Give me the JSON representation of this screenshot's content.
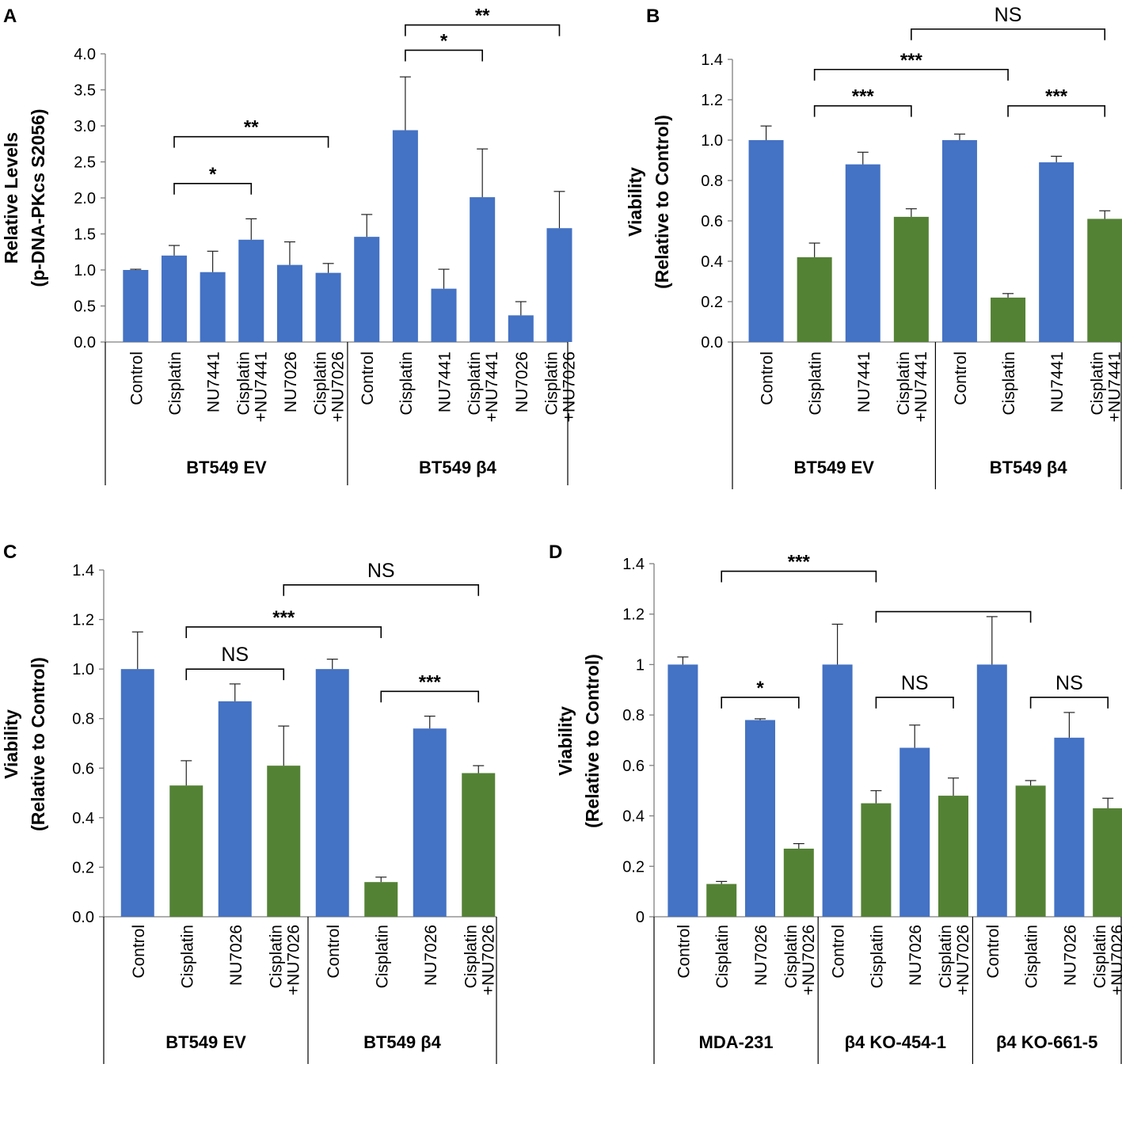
{
  "colors": {
    "blue": "#4472C4",
    "green": "#548235",
    "axis": "#7f7f7f",
    "ink": "#000000"
  },
  "chart_data": [
    {
      "panel": "A",
      "type": "bar",
      "ylabel_line1": "Relative Levels",
      "ylabel_line2": "(p-DNA-PKcs S2056)",
      "ylim": [
        0,
        4.0
      ],
      "yticks": [
        "0.0",
        "0.5",
        "1.0",
        "1.5",
        "2.0",
        "2.5",
        "3.0",
        "3.5",
        "4.0"
      ],
      "categories": [
        [
          "Control"
        ],
        [
          "Cisplatin"
        ],
        [
          "NU7441"
        ],
        [
          "Cisplatin",
          "+NU7441"
        ],
        [
          "NU7026"
        ],
        [
          "Cisplatin",
          "+NU7026"
        ],
        [
          "Control"
        ],
        [
          "Cisplatin"
        ],
        [
          "NU7441"
        ],
        [
          "Cisplatin",
          "+NU7441"
        ],
        [
          "NU7026"
        ],
        [
          "Cisplatin",
          "+NU7026"
        ]
      ],
      "values": [
        1.0,
        1.2,
        0.97,
        1.42,
        1.07,
        0.96,
        1.46,
        2.94,
        0.74,
        2.01,
        0.37,
        1.58
      ],
      "errors": [
        0.01,
        0.14,
        0.29,
        0.29,
        0.32,
        0.13,
        0.31,
        0.74,
        0.27,
        0.67,
        0.19,
        0.51
      ],
      "bar_colors": [
        "blue",
        "blue",
        "blue",
        "blue",
        "blue",
        "blue",
        "blue",
        "blue",
        "blue",
        "blue",
        "blue",
        "blue"
      ],
      "groups": [
        {
          "label": "BT549 EV",
          "start": 0,
          "end": 5
        },
        {
          "label": "BT549 β4",
          "start": 6,
          "end": 11
        }
      ],
      "annotations": [
        {
          "from": 1,
          "to": 3,
          "level": 2.2,
          "label": "*"
        },
        {
          "from": 1,
          "to": 5,
          "level": 2.85,
          "label": "**"
        },
        {
          "from": 7,
          "to": 9,
          "level": 4.05,
          "label": "*"
        },
        {
          "from": 7,
          "to": 11,
          "level": 4.4,
          "label": "**"
        }
      ]
    },
    {
      "panel": "B",
      "type": "bar",
      "ylabel_line1": "Viability",
      "ylabel_line2": "(Relative to Control)",
      "ylim": [
        0,
        1.4
      ],
      "yticks": [
        "0.0",
        "0.2",
        "0.4",
        "0.6",
        "0.8",
        "1.0",
        "1.2",
        "1.4"
      ],
      "categories": [
        [
          "Control"
        ],
        [
          "Cisplatin"
        ],
        [
          "NU7441"
        ],
        [
          "Cisplatin",
          "+NU7441"
        ],
        [
          "Control"
        ],
        [
          "Cisplatin"
        ],
        [
          "NU7441"
        ],
        [
          "Cisplatin",
          "+NU7441"
        ]
      ],
      "values": [
        1.0,
        0.42,
        0.88,
        0.62,
        1.0,
        0.22,
        0.89,
        0.61
      ],
      "errors": [
        0.07,
        0.07,
        0.06,
        0.04,
        0.03,
        0.02,
        0.03,
        0.04
      ],
      "bar_colors": [
        "blue",
        "green",
        "blue",
        "green",
        "blue",
        "green",
        "blue",
        "green"
      ],
      "groups": [
        {
          "label": "BT549 EV",
          "start": 0,
          "end": 3
        },
        {
          "label": "BT549 β4",
          "start": 4,
          "end": 7
        }
      ],
      "annotations": [
        {
          "from": 1,
          "to": 3,
          "level": 1.17,
          "label": "***"
        },
        {
          "from": 5,
          "to": 7,
          "level": 1.17,
          "label": "***"
        },
        {
          "from": 1,
          "to": 5,
          "level": 1.35,
          "label": "***"
        },
        {
          "from": 3,
          "to": 7,
          "level": 1.55,
          "label": "NS"
        }
      ]
    },
    {
      "panel": "C",
      "type": "bar",
      "ylabel_line1": "Viability",
      "ylabel_line2": "(Relative to Control)",
      "ylim": [
        0,
        1.4
      ],
      "yticks": [
        "0.0",
        "0.2",
        "0.4",
        "0.6",
        "0.8",
        "1.0",
        "1.2",
        "1.4"
      ],
      "categories": [
        [
          "Control"
        ],
        [
          "Cisplatin"
        ],
        [
          "NU7026"
        ],
        [
          "Cisplatin",
          "+NU7026"
        ],
        [
          "Control"
        ],
        [
          "Cisplatin"
        ],
        [
          "NU7026"
        ],
        [
          "Cisplatin",
          "+NU7026"
        ]
      ],
      "values": [
        1.0,
        0.53,
        0.87,
        0.61,
        1.0,
        0.14,
        0.76,
        0.58
      ],
      "errors": [
        0.15,
        0.1,
        0.07,
        0.16,
        0.04,
        0.02,
        0.05,
        0.03
      ],
      "bar_colors": [
        "blue",
        "green",
        "blue",
        "green",
        "blue",
        "green",
        "blue",
        "green"
      ],
      "groups": [
        {
          "label": "BT549 EV",
          "start": 0,
          "end": 3
        },
        {
          "label": "BT549 β4",
          "start": 4,
          "end": 7
        }
      ],
      "annotations": [
        {
          "from": 1,
          "to": 3,
          "level": 1.0,
          "label": "NS"
        },
        {
          "from": 5,
          "to": 7,
          "level": 0.91,
          "label": "***"
        },
        {
          "from": 1,
          "to": 5,
          "level": 1.17,
          "label": "***"
        },
        {
          "from": 3,
          "to": 7,
          "level": 1.34,
          "label": "NS"
        }
      ]
    },
    {
      "panel": "D",
      "type": "bar",
      "ylabel_line1": "Viability",
      "ylabel_line2": "(Relative to Control)",
      "ylim": [
        0,
        1.4
      ],
      "yticks": [
        "0",
        "0.2",
        "0.4",
        "0.6",
        "0.8",
        "1",
        "1.2",
        "1.4"
      ],
      "categories": [
        [
          "Control"
        ],
        [
          "Cisplatin"
        ],
        [
          "NU7026"
        ],
        [
          "Cisplatin",
          "+NU7026"
        ],
        [
          "Control"
        ],
        [
          "Cisplatin"
        ],
        [
          "NU7026"
        ],
        [
          "Cisplatin",
          "+NU7026"
        ],
        [
          "Control"
        ],
        [
          "Cisplatin"
        ],
        [
          "NU7026"
        ],
        [
          "Cisplatin",
          "+NU7026"
        ]
      ],
      "values": [
        1.0,
        0.13,
        0.78,
        0.27,
        1.0,
        0.45,
        0.67,
        0.48,
        1.0,
        0.52,
        0.71,
        0.43
      ],
      "errors": [
        0.03,
        0.01,
        0.005,
        0.02,
        0.16,
        0.05,
        0.09,
        0.07,
        0.19,
        0.02,
        0.1,
        0.04
      ],
      "bar_colors": [
        "blue",
        "green",
        "blue",
        "green",
        "blue",
        "green",
        "blue",
        "green",
        "blue",
        "green",
        "blue",
        "green"
      ],
      "groups": [
        {
          "label": "MDA-231",
          "start": 0,
          "end": 3
        },
        {
          "label": "β4 KO-454-1",
          "start": 4,
          "end": 7
        },
        {
          "label": "β4 KO-661-5",
          "start": 8,
          "end": 11
        }
      ],
      "annotations": [
        {
          "from": 1,
          "to": 3,
          "level": 0.87,
          "label": "*"
        },
        {
          "from": 5,
          "to": 7,
          "level": 0.87,
          "label": "NS"
        },
        {
          "from": 9,
          "to": 11,
          "level": 0.87,
          "label": "NS"
        },
        {
          "from": 1,
          "to": 5,
          "level": 1.37,
          "label": "***"
        },
        {
          "from": 5,
          "to": 9,
          "level": 1.21,
          "label": ""
        }
      ]
    }
  ]
}
